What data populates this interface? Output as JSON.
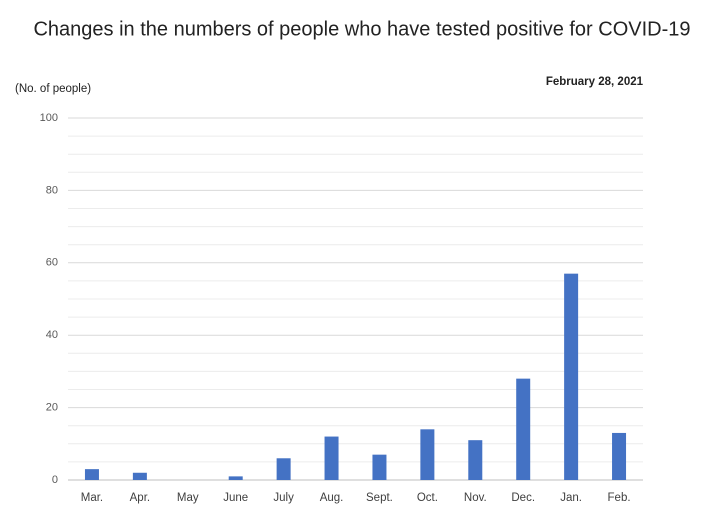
{
  "chart_data": {
    "type": "bar",
    "title": "Changes in the numbers of people who have tested positive for COVID-19",
    "subtitle": "February 28, 2021",
    "y_label": "(No. of people)",
    "categories": [
      "Mar.",
      "Apr.",
      "May",
      "June",
      "July",
      "Aug.",
      "Sept.",
      "Oct.",
      "Nov.",
      "Dec.",
      "Jan.",
      "Feb."
    ],
    "values": [
      3,
      2,
      0,
      1,
      6,
      12,
      7,
      14,
      11,
      28,
      57,
      13
    ],
    "color": "#4472c4",
    "ylim": [
      0,
      100
    ],
    "yticks": [
      0,
      20,
      40,
      60,
      80,
      100
    ],
    "minor_yticks": [
      5,
      10,
      15,
      25,
      30,
      35,
      45,
      50,
      55,
      65,
      70,
      75,
      85,
      90,
      95
    ],
    "grid": true
  }
}
